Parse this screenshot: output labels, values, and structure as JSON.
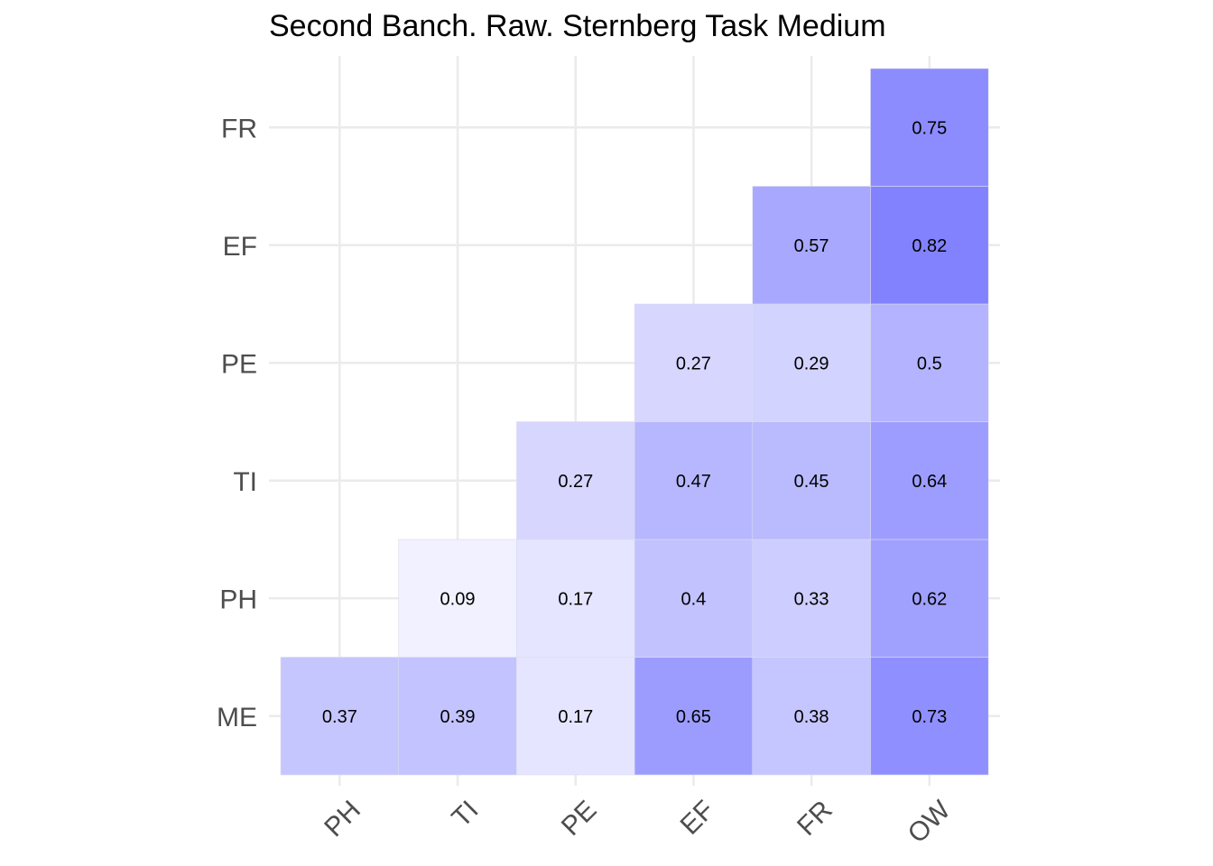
{
  "chart_data": {
    "type": "heatmap",
    "title": "Second Banch. Raw. Sternberg Task Medium",
    "x_categories": [
      "PH",
      "TI",
      "PE",
      "EF",
      "FR",
      "OW"
    ],
    "y_categories": [
      "ME",
      "PH",
      "TI",
      "PE",
      "EF",
      "FR"
    ],
    "cells": [
      {
        "x": "PH",
        "y": "ME",
        "value": 0.37
      },
      {
        "x": "TI",
        "y": "ME",
        "value": 0.39
      },
      {
        "x": "PE",
        "y": "ME",
        "value": 0.17
      },
      {
        "x": "EF",
        "y": "ME",
        "value": 0.65
      },
      {
        "x": "FR",
        "y": "ME",
        "value": 0.38
      },
      {
        "x": "OW",
        "y": "ME",
        "value": 0.73
      },
      {
        "x": "TI",
        "y": "PH",
        "value": 0.09
      },
      {
        "x": "PE",
        "y": "PH",
        "value": 0.17
      },
      {
        "x": "EF",
        "y": "PH",
        "value": 0.4
      },
      {
        "x": "FR",
        "y": "PH",
        "value": 0.33
      },
      {
        "x": "OW",
        "y": "PH",
        "value": 0.62
      },
      {
        "x": "PE",
        "y": "TI",
        "value": 0.27
      },
      {
        "x": "EF",
        "y": "TI",
        "value": 0.47
      },
      {
        "x": "FR",
        "y": "TI",
        "value": 0.45
      },
      {
        "x": "OW",
        "y": "TI",
        "value": 0.64
      },
      {
        "x": "EF",
        "y": "PE",
        "value": 0.27
      },
      {
        "x": "FR",
        "y": "PE",
        "value": 0.29
      },
      {
        "x": "OW",
        "y": "PE",
        "value": 0.5
      },
      {
        "x": "FR",
        "y": "EF",
        "value": 0.57
      },
      {
        "x": "OW",
        "y": "EF",
        "value": 0.82
      },
      {
        "x": "OW",
        "y": "FR",
        "value": 0.75
      }
    ],
    "color_low": "#ffffff",
    "color_high": "#0000ff",
    "grid": true,
    "legend": "none"
  }
}
